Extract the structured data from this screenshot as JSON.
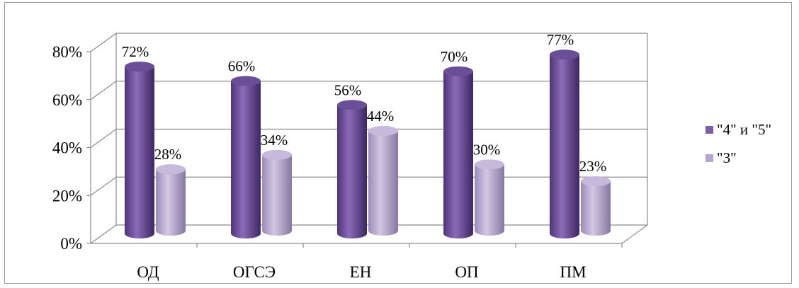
{
  "chart_data": {
    "type": "bar",
    "style": "3d-cylinder",
    "categories": [
      "ОД",
      "ОГСЭ",
      "ЕН",
      "ОП",
      "ПМ"
    ],
    "series": [
      {
        "name": "\"4\" и \"5\"",
        "values": [
          72,
          66,
          56,
          70,
          77
        ],
        "color": "#7b5ea7"
      },
      {
        "name": "\"3\"",
        "values": [
          28,
          34,
          44,
          30,
          23
        ],
        "color": "#b6a6cf"
      }
    ],
    "data_labels": [
      [
        "72%",
        "66%",
        "56%",
        "70%",
        "77%"
      ],
      [
        "28%",
        "34%",
        "44%",
        "30%",
        "23%"
      ]
    ],
    "yticks": [
      "0%",
      "20%",
      "40%",
      "60%",
      "80%"
    ],
    "ylim": [
      0,
      80
    ],
    "grid": true,
    "legend_position": "right"
  }
}
